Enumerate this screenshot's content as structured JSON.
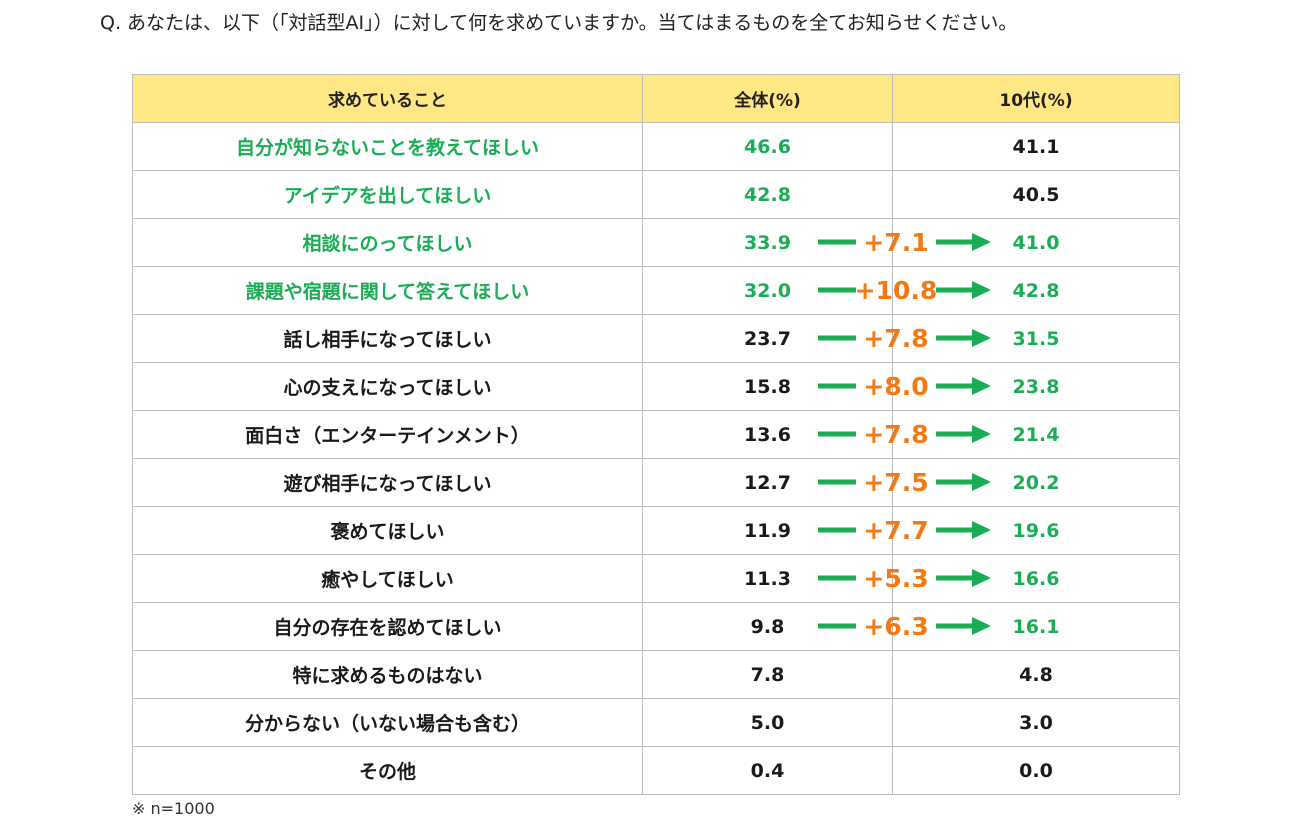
{
  "question": "Q. あなたは、以下（「対話型AI」）に対して何を求めていますか。当てはまるものを全てお知らせください。",
  "headers": {
    "item": "求めていること",
    "total": "全体(%)",
    "teen": "10代(%)"
  },
  "note": "※ n=1000",
  "colors": {
    "header_bg": "#ffe785",
    "highlight_green": "#1aad55",
    "diff_orange": "#f07a14",
    "arrow_green": "#1aad55"
  },
  "rows": [
    {
      "item": "自分が知らないことを教えてほしい",
      "total": "46.6",
      "teen": "41.1",
      "diff": "",
      "item_hl": true,
      "total_hl": true,
      "teen_hl": false
    },
    {
      "item": "アイデアを出してほしい",
      "total": "42.8",
      "teen": "40.5",
      "diff": "",
      "item_hl": true,
      "total_hl": true,
      "teen_hl": false
    },
    {
      "item": "相談にのってほしい",
      "total": "33.9",
      "teen": "41.0",
      "diff": "+7.1",
      "item_hl": true,
      "total_hl": true,
      "teen_hl": true
    },
    {
      "item": "課題や宿題に関して答えてほしい",
      "total": "32.0",
      "teen": "42.8",
      "diff": "+10.8",
      "item_hl": true,
      "total_hl": true,
      "teen_hl": true
    },
    {
      "item": "話し相手になってほしい",
      "total": "23.7",
      "teen": "31.5",
      "diff": "+7.8",
      "item_hl": false,
      "total_hl": false,
      "teen_hl": true
    },
    {
      "item": "心の支えになってほしい",
      "total": "15.8",
      "teen": "23.8",
      "diff": "+8.0",
      "item_hl": false,
      "total_hl": false,
      "teen_hl": true
    },
    {
      "item": "面白さ（エンターテインメント）",
      "total": "13.6",
      "teen": "21.4",
      "diff": "+7.8",
      "item_hl": false,
      "total_hl": false,
      "teen_hl": true
    },
    {
      "item": "遊び相手になってほしい",
      "total": "12.7",
      "teen": "20.2",
      "diff": "+7.5",
      "item_hl": false,
      "total_hl": false,
      "teen_hl": true
    },
    {
      "item": "褒めてほしい",
      "total": "11.9",
      "teen": "19.6",
      "diff": "+7.7",
      "item_hl": false,
      "total_hl": false,
      "teen_hl": true
    },
    {
      "item": "癒やしてほしい",
      "total": "11.3",
      "teen": "16.6",
      "diff": "+5.3",
      "item_hl": false,
      "total_hl": false,
      "teen_hl": true
    },
    {
      "item": "自分の存在を認めてほしい",
      "total": "9.8",
      "teen": "16.1",
      "diff": "+6.3",
      "item_hl": false,
      "total_hl": false,
      "teen_hl": true
    },
    {
      "item": "特に求めるものはない",
      "total": "7.8",
      "teen": "4.8",
      "diff": "",
      "item_hl": false,
      "total_hl": false,
      "teen_hl": false
    },
    {
      "item": "分からない（いない場合も含む）",
      "total": "5.0",
      "teen": "3.0",
      "diff": "",
      "item_hl": false,
      "total_hl": false,
      "teen_hl": false
    },
    {
      "item": "その他",
      "total": "0.4",
      "teen": "0.0",
      "diff": "",
      "item_hl": false,
      "total_hl": false,
      "teen_hl": false
    }
  ],
  "chart_data": {
    "type": "table",
    "columns": [
      "求めていること",
      "全体(%)",
      "10代(%)"
    ],
    "categories": [
      "自分が知らないことを教えてほしい",
      "アイデアを出してほしい",
      "相談にのってほしい",
      "課題や宿題に関して答えてほしい",
      "話し相手になってほしい",
      "心の支えになってほしい",
      "面白さ（エンターテインメント）",
      "遊び相手になってほしい",
      "褒めてほしい",
      "癒やしてほしい",
      "自分の存在を認めてほしい",
      "特に求めるものはない",
      "分からない（いない場合も含む）",
      "その他"
    ],
    "series": [
      {
        "name": "全体(%)",
        "values": [
          46.6,
          42.8,
          33.9,
          32.0,
          23.7,
          15.8,
          13.6,
          12.7,
          11.9,
          11.3,
          9.8,
          7.8,
          5.0,
          0.4
        ]
      },
      {
        "name": "10代(%)",
        "values": [
          41.1,
          40.5,
          41.0,
          42.8,
          31.5,
          23.8,
          21.4,
          20.2,
          19.6,
          16.6,
          16.1,
          4.8,
          3.0,
          0.0
        ]
      }
    ],
    "annotations": [
      "+7.1",
      "+10.8",
      "+7.8",
      "+8.0",
      "+7.8",
      "+7.5",
      "+7.7",
      "+5.3",
      "+6.3"
    ]
  }
}
